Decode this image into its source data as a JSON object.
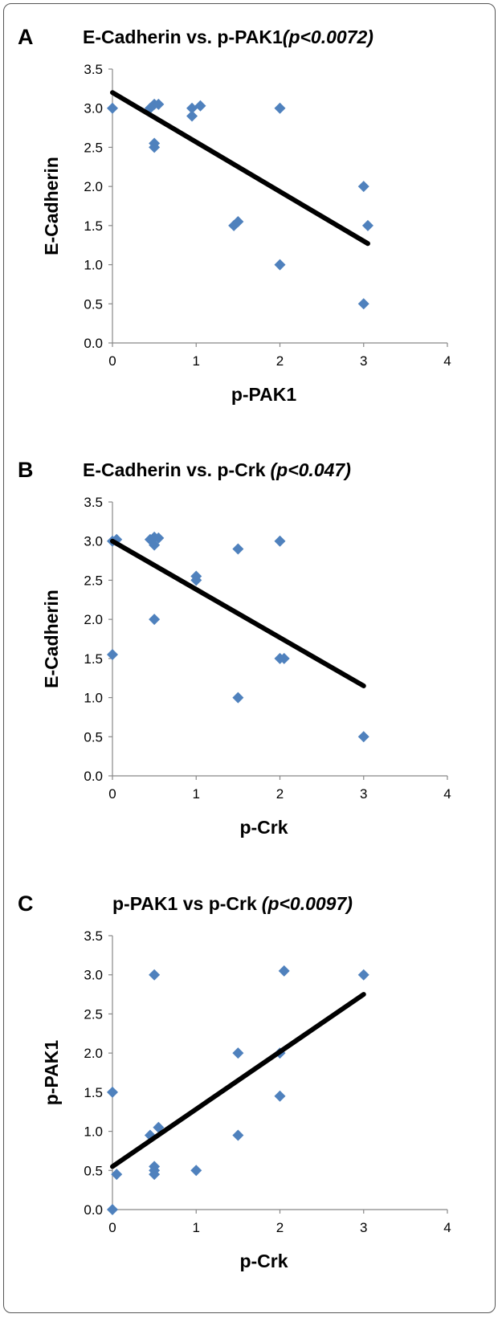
{
  "chart_data": [
    {
      "type": "scatter",
      "panel_letter": "A",
      "title": "E-Cadherin vs. p-PAK1",
      "p_value": "(p<0.0072)",
      "xlabel": "p-PAK1",
      "ylabel": "E-Cadherin",
      "xlim": [
        0,
        4
      ],
      "ylim": [
        0,
        3.5
      ],
      "x_ticks": [
        "0",
        "1",
        "2",
        "3",
        "4"
      ],
      "y_ticks": [
        "0.0",
        "0.5",
        "1.0",
        "1.5",
        "2.0",
        "2.5",
        "3.0",
        "3.5"
      ],
      "points": [
        {
          "x": 0,
          "y": 3.0
        },
        {
          "x": 0.45,
          "y": 3.0
        },
        {
          "x": 0.5,
          "y": 3.05
        },
        {
          "x": 0.55,
          "y": 3.05
        },
        {
          "x": 0.5,
          "y": 2.55
        },
        {
          "x": 0.5,
          "y": 2.5
        },
        {
          "x": 0.95,
          "y": 3.0
        },
        {
          "x": 1.05,
          "y": 3.03
        },
        {
          "x": 0.95,
          "y": 2.9
        },
        {
          "x": 1.45,
          "y": 1.5
        },
        {
          "x": 1.5,
          "y": 1.55
        },
        {
          "x": 2.0,
          "y": 3.0
        },
        {
          "x": 2.0,
          "y": 1.0
        },
        {
          "x": 3.0,
          "y": 2.0
        },
        {
          "x": 3.05,
          "y": 1.5
        },
        {
          "x": 3.0,
          "y": 0.5
        }
      ],
      "trendline": {
        "x": [
          0,
          3.05
        ],
        "y": [
          3.2,
          1.27
        ]
      },
      "marker_color": "#4f81bd",
      "line_color": "#000000",
      "grid": false,
      "legend": "none"
    },
    {
      "type": "scatter",
      "panel_letter": "B",
      "title": "E-Cadherin vs. p-Crk",
      "p_value": "(p<0.047)",
      "xlabel": "p-Crk",
      "ylabel": "E-Cadherin",
      "xlim": [
        0,
        4
      ],
      "ylim": [
        0,
        3.5
      ],
      "x_ticks": [
        "0",
        "1",
        "2",
        "3",
        "4"
      ],
      "y_ticks": [
        "0.0",
        "0.5",
        "1.0",
        "1.5",
        "2.0",
        "2.5",
        "3.0",
        "3.5"
      ],
      "points": [
        {
          "x": 0,
          "y": 3.0
        },
        {
          "x": 0.05,
          "y": 3.02
        },
        {
          "x": 0,
          "y": 1.55
        },
        {
          "x": 0.45,
          "y": 3.02
        },
        {
          "x": 0.5,
          "y": 3.05
        },
        {
          "x": 0.55,
          "y": 3.04
        },
        {
          "x": 0.5,
          "y": 2.95
        },
        {
          "x": 0.5,
          "y": 2.0
        },
        {
          "x": 1.0,
          "y": 2.55
        },
        {
          "x": 1.0,
          "y": 2.5
        },
        {
          "x": 1.5,
          "y": 2.9
        },
        {
          "x": 1.5,
          "y": 1.0
        },
        {
          "x": 2.0,
          "y": 3.0
        },
        {
          "x": 2.0,
          "y": 1.5
        },
        {
          "x": 2.05,
          "y": 1.5
        },
        {
          "x": 3.0,
          "y": 0.5
        }
      ],
      "trendline": {
        "x": [
          0,
          3.0
        ],
        "y": [
          3.0,
          1.15
        ]
      },
      "marker_color": "#4f81bd",
      "line_color": "#000000",
      "grid": false,
      "legend": "none"
    },
    {
      "type": "scatter",
      "panel_letter": "C",
      "title": "p-PAK1 vs p-Crk",
      "p_value": "(p<0.0097)",
      "xlabel": "p-Crk",
      "ylabel": "p-PAK1",
      "xlim": [
        0,
        4
      ],
      "ylim": [
        0,
        3.5
      ],
      "x_ticks": [
        "0",
        "1",
        "2",
        "3",
        "4"
      ],
      "y_ticks": [
        "0.0",
        "0.5",
        "1.0",
        "1.5",
        "2.0",
        "2.5",
        "3.0",
        "3.5"
      ],
      "points": [
        {
          "x": 0,
          "y": 1.5
        },
        {
          "x": 0,
          "y": 0.0
        },
        {
          "x": 0.05,
          "y": 0.45
        },
        {
          "x": 0.45,
          "y": 0.95
        },
        {
          "x": 0.5,
          "y": 3.0
        },
        {
          "x": 0.55,
          "y": 1.05
        },
        {
          "x": 0.5,
          "y": 0.55
        },
        {
          "x": 0.5,
          "y": 0.5
        },
        {
          "x": 0.5,
          "y": 0.45
        },
        {
          "x": 1.0,
          "y": 0.5
        },
        {
          "x": 1.5,
          "y": 2.0
        },
        {
          "x": 1.5,
          "y": 0.95
        },
        {
          "x": 2.0,
          "y": 2.0
        },
        {
          "x": 2.0,
          "y": 1.45
        },
        {
          "x": 2.05,
          "y": 3.05
        },
        {
          "x": 3.0,
          "y": 3.0
        }
      ],
      "trendline": {
        "x": [
          0,
          3.0
        ],
        "y": [
          0.55,
          2.75
        ]
      },
      "marker_color": "#4f81bd",
      "line_color": "#000000",
      "grid": false,
      "legend": "none"
    }
  ]
}
